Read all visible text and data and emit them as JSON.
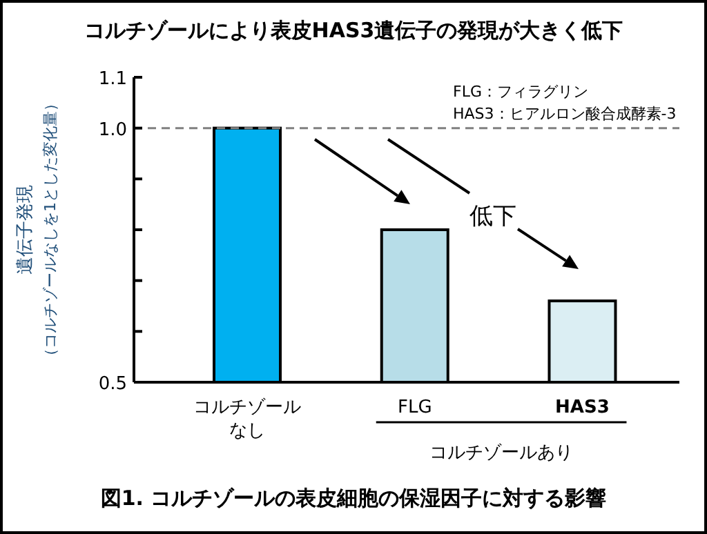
{
  "chart_data": {
    "type": "bar",
    "title": "コルチゾールにより表皮HAS3遺伝子の発現が大きく低下",
    "ylabel": "遺伝子発現",
    "categories": [
      "コルチゾールなし",
      "FLG",
      "HAS3"
    ],
    "values": [
      1.0,
      0.8,
      0.66
    ],
    "colors": [
      "#00b0f0",
      "#b7dde8",
      "#dbeef3"
    ],
    "ylim": [
      0.5,
      1.1
    ],
    "yticks": [
      0.5,
      {
        "value": 0.6,
        "label": null
      },
      {
        "value": 0.7,
        "label": null
      },
      {
        "value": 0.8,
        "label": null
      },
      {
        "value": 0.9,
        "label": null
      },
      {
        "value": 1,
        "label": "1.0"
      },
      1.1
    ],
    "ref_lines": [
      {
        "axis": "y",
        "value": 1,
        "color": "#808080",
        "line_style": "dashed"
      }
    ],
    "annotations": [
      "（コルチゾールなしを1とした変化量）",
      "FLG：フィラグリン",
      "HAS3：ヒアルロン酸合成酵素-3",
      "低下",
      "コルチゾールあり",
      "図1. コルチゾールの表皮細胞の保湿因子に対する影響"
    ],
    "grid": false
  }
}
